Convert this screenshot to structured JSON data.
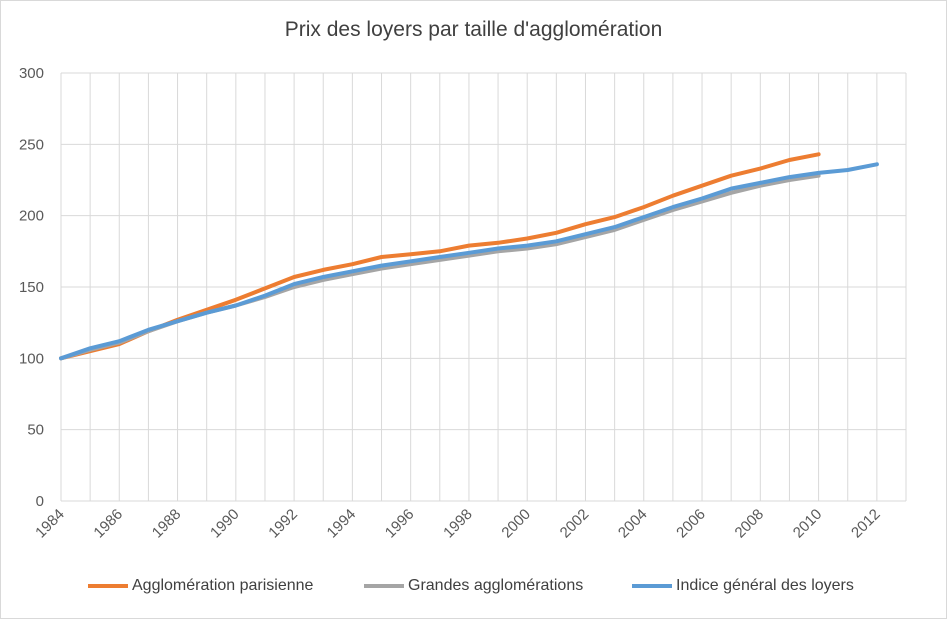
{
  "chart_data": {
    "type": "line",
    "title": "Prix des loyers par taille d'agglomération",
    "xlabel": "",
    "ylabel": "",
    "ylim": [
      0,
      300
    ],
    "xlim": [
      1984,
      2013
    ],
    "y_ticks": [
      "0",
      "50",
      "100",
      "150",
      "200",
      "250",
      "300"
    ],
    "x_ticks": [
      "1984",
      "1986",
      "1988",
      "1990",
      "1992",
      "1994",
      "1996",
      "1998",
      "2000",
      "2002",
      "2004",
      "2006",
      "2008",
      "2010",
      "2012"
    ],
    "grid": true,
    "legend_position": "bottom",
    "series": [
      {
        "name": "Agglomération parisienne",
        "color": "#ed7d31",
        "x": [
          1984,
          1985,
          1986,
          1987,
          1988,
          1989,
          1990,
          1991,
          1992,
          1993,
          1994,
          1995,
          1996,
          1997,
          1998,
          1999,
          2000,
          2001,
          2002,
          2003,
          2004,
          2005,
          2006,
          2007,
          2008,
          2009,
          2010
        ],
        "values": [
          100,
          105,
          110,
          119,
          127,
          134,
          141,
          149,
          157,
          162,
          166,
          171,
          173,
          175,
          179,
          181,
          184,
          188,
          194,
          199,
          206,
          214,
          221,
          228,
          233,
          239,
          243
        ]
      },
      {
        "name": "Grandes agglomérations",
        "color": "#a5a5a5",
        "x": [
          1984,
          1985,
          1986,
          1987,
          1988,
          1989,
          1990,
          1991,
          1992,
          1993,
          1994,
          1995,
          1996,
          1997,
          1998,
          1999,
          2000,
          2001,
          2002,
          2003,
          2004,
          2005,
          2006,
          2007,
          2008,
          2009,
          2010
        ],
        "values": [
          100,
          106,
          111,
          119,
          126,
          132,
          137,
          143,
          150,
          155,
          159,
          163,
          166,
          169,
          172,
          175,
          177,
          180,
          185,
          190,
          197,
          204,
          210,
          216,
          221,
          225,
          228
        ]
      },
      {
        "name": "Indice général des loyers",
        "color": "#5b9bd5",
        "x": [
          1984,
          1985,
          1986,
          1987,
          1988,
          1989,
          1990,
          1991,
          1992,
          1993,
          1994,
          1995,
          1996,
          1997,
          1998,
          1999,
          2000,
          2001,
          2002,
          2003,
          2004,
          2005,
          2006,
          2007,
          2008,
          2009,
          2010,
          2011,
          2012
        ],
        "values": [
          100,
          107,
          112,
          120,
          126,
          132,
          137,
          144,
          152,
          157,
          161,
          165,
          168,
          171,
          174,
          177,
          179,
          182,
          187,
          192,
          199,
          206,
          212,
          219,
          223,
          227,
          230,
          232,
          236
        ]
      }
    ]
  }
}
